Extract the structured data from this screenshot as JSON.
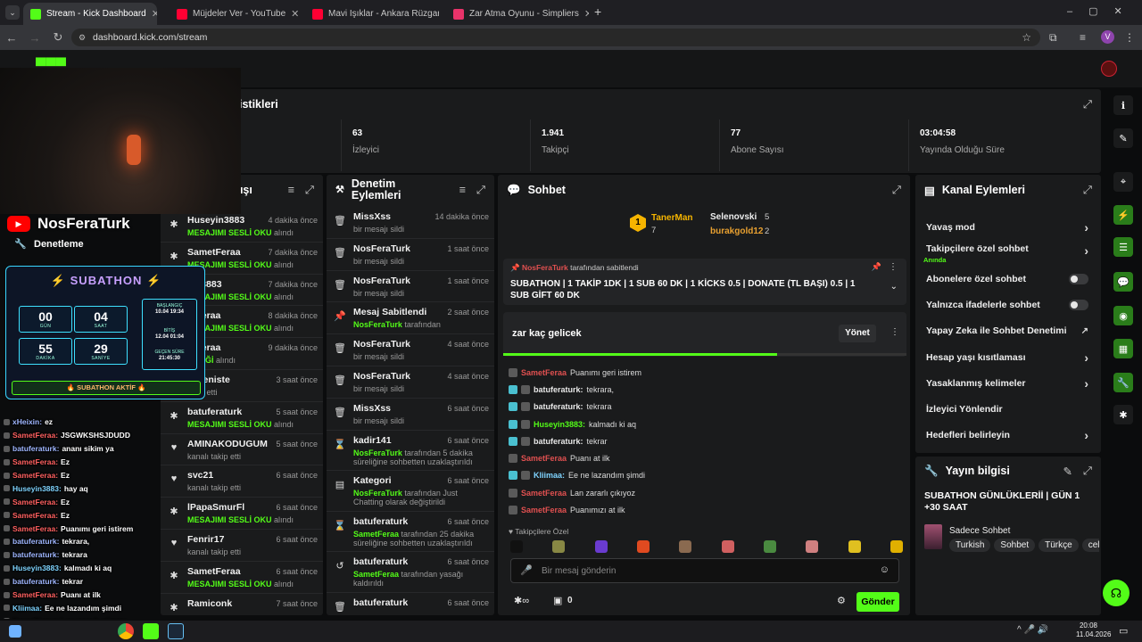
{
  "browser": {
    "tabs": [
      {
        "title": "Stream - Kick Dashboard",
        "color": "#53fc18",
        "active": true
      },
      {
        "title": "Müjdeler Ver - YouTube",
        "color": "#ff0033",
        "active": false
      },
      {
        "title": "Mavi Işıklar - Ankara Rüzgarı (1",
        "color": "#ff0033",
        "active": false
      },
      {
        "title": "Zar Atma Oyunu - Simpliers",
        "color": "#e8336a",
        "active": false
      }
    ],
    "new_tab": "+",
    "url": "dashboard.kick.com/stream",
    "profile": "V"
  },
  "stats": {
    "title_fragment": "istikleri",
    "items": [
      {
        "value": "63",
        "label": "İzleyici"
      },
      {
        "value": "1.941",
        "label": "Takipçi"
      },
      {
        "value": "77",
        "label": "Abone Sayısı"
      },
      {
        "value": "03:04:58",
        "label": "Yayında Olduğu Süre"
      }
    ]
  },
  "activity": {
    "title_fragment": "kışı",
    "rows": [
      {
        "name": "Huseyin3883",
        "time": "4 dakika önce",
        "detail_green": "MESAJIMI SESLİ OKU",
        "detail": "alındı"
      },
      {
        "name": "SametFeraa",
        "time": "7 dakika önce",
        "detail_green": "MESAJIMI SESLİ OKU",
        "detail": "alındı"
      },
      {
        "name": "yin3883",
        "time": "7 dakika önce",
        "detail_green": "MESAJIMI SESLİ OKU",
        "detail": "alındı"
      },
      {
        "name": "etFeraa",
        "time": "8 dakika önce",
        "detail_green": "MESAJIMI SESLİ OKU",
        "detail": "alındı"
      },
      {
        "name": "etFeraa",
        "time": "9 dakika önce",
        "detail_green": "İSTEĞİ",
        "detail": "alındı"
      },
      {
        "name": "cli_eniste",
        "time": "3 saat önce",
        "detail_green": "",
        "detail": "takip etti"
      },
      {
        "name": "batuferaturk",
        "time": "5 saat önce",
        "detail_green": "MESAJIMI SESLİ OKU",
        "detail": "alındı"
      },
      {
        "name": "AMINAKODUGUM",
        "time": "5 saat önce",
        "detail_green": "",
        "detail": "kanalı takip etti"
      },
      {
        "name": "svc21",
        "time": "6 saat önce",
        "detail_green": "",
        "detail": "kanalı takip etti"
      },
      {
        "name": "lPapaSmurFl",
        "time": "6 saat önce",
        "detail_green": "MESAJIMI SESLİ OKU",
        "detail": "alındı"
      },
      {
        "name": "Fenrir17",
        "time": "6 saat önce",
        "detail_green": "",
        "detail": "kanalı takip etti"
      },
      {
        "name": "SametFeraa",
        "time": "6 saat önce",
        "detail_green": "MESAJIMI SESLİ OKU",
        "detail": "alındı"
      },
      {
        "name": "Ramiconk",
        "time": "7 saat önce",
        "detail_green": "",
        "detail": ""
      }
    ]
  },
  "moderation": {
    "title_line1": "Denetim",
    "title_line2": "Eylemleri",
    "rows": [
      {
        "name": "MissXss",
        "time": "14 dakika önce",
        "detail": "bir mesajı sildi",
        "icon": "trash-icon",
        "glyph": "🗑"
      },
      {
        "name": "NosFeraTurk",
        "time": "1 saat önce",
        "detail": "bir mesajı sildi",
        "icon": "trash-icon",
        "glyph": "🗑"
      },
      {
        "name": "NosFeraTurk",
        "time": "1 saat önce",
        "detail": "bir mesajı sildi",
        "icon": "trash-icon",
        "glyph": "🗑"
      },
      {
        "name": "Mesaj Sabitlendi",
        "time": "2 saat önce",
        "detail_green": "NosFeraTurk",
        "detail": "tarafından",
        "icon": "pin-icon",
        "glyph": "📌"
      },
      {
        "name": "NosFeraTurk",
        "time": "4 saat önce",
        "detail": "bir mesajı sildi",
        "icon": "trash-icon",
        "glyph": "🗑"
      },
      {
        "name": "NosFeraTurk",
        "time": "4 saat önce",
        "detail": "bir mesajı sildi",
        "icon": "trash-icon",
        "glyph": "🗑"
      },
      {
        "name": "MissXss",
        "time": "6 saat önce",
        "detail": "bir mesajı sildi",
        "icon": "trash-icon",
        "glyph": "🗑"
      },
      {
        "name": "kadir141",
        "time": "6 saat önce",
        "detail_green": "NosFeraTurk",
        "detail": "tarafından 5 dakika süreliğine sohbetten uzaklaştırıldı",
        "icon": "hourglass-icon",
        "glyph": "⌛",
        "tall": true
      },
      {
        "name": "Kategori",
        "time": "6 saat önce",
        "detail_green": "NosFeraTurk",
        "detail": "tarafından Just Chatting olarak değiştirildi",
        "icon": "category-icon",
        "glyph": "▤",
        "tall": true
      },
      {
        "name": "batuferaturk",
        "time": "6 saat önce",
        "detail_green": "SametFeraa",
        "detail": "tarafından 25 dakika süreliğine sohbetten uzaklaştırıldı",
        "icon": "hourglass-icon",
        "glyph": "⌛",
        "tall": true
      },
      {
        "name": "batuferaturk",
        "time": "6 saat önce",
        "detail_green": "SametFeraa",
        "detail": "tarafından yasağı kaldırıldı",
        "icon": "undo-icon",
        "glyph": "↺",
        "tall": true
      },
      {
        "name": "batuferaturk",
        "time": "6 saat önce",
        "detail": "",
        "icon": "trash-icon",
        "glyph": "🗑"
      }
    ]
  },
  "chat": {
    "title": "Sohbet",
    "leaderboard": [
      {
        "name": "TanerMan",
        "count": "7"
      },
      {
        "name": "Selenovski",
        "count": "5"
      },
      {
        "name": "burakgold12",
        "count": "2"
      }
    ],
    "pinned_by": "NosFeraTurk",
    "pinned_by_suffix": "tarafından sabitlendi",
    "pinned_text": "SUBATHON | 1 TAKİP 1DK | 1 SUB 60 DK | 1 KİCKS 0.5 | DONATE (TL BAŞI) 0.5 | 1 SUB GİFT 60 DK",
    "poll_text": "zar kaç gelicek",
    "poll_button": "Yönet",
    "poll_progress": 0.68,
    "messages": [
      {
        "user": "SametFeraa",
        "text": "Puanımı geri istirem",
        "color": "red"
      },
      {
        "user": "batuferaturk:",
        "text": "tekrara,",
        "color": "blue"
      },
      {
        "user": "batuferaturk:",
        "text": "tekrara",
        "color": "blue"
      },
      {
        "user": "Huseyin3883:",
        "text": "kalmadı ki aq",
        "color": "green"
      },
      {
        "user": "batuferaturk:",
        "text": "tekrar",
        "color": "blue"
      },
      {
        "user": "SametFeraa",
        "text": "Puanı at ilk",
        "color": "red"
      },
      {
        "user": "Kliimaa:",
        "text": "Ee ne lazandım şimdi",
        "color": "cyan"
      },
      {
        "user": "SametFeraa",
        "text": "Lan zararlı çıkıyoz",
        "color": "red"
      },
      {
        "user": "SametFeraa",
        "text": "Puanımızı at ilk",
        "color": "red"
      }
    ],
    "followers_label": "Takipçilere Özel",
    "input_placeholder": "Bir mesaj gönderin",
    "points": "0",
    "send_button": "Gönder"
  },
  "channel_actions": {
    "title": "Kanal Eylemleri",
    "items": [
      {
        "label": "Yavaş mod",
        "control": "chevron"
      },
      {
        "label": "Takipçilere özel sohbet",
        "sub": "Anında",
        "control": "chevron"
      },
      {
        "label": "Abonelere özel sohbet",
        "control": "toggle"
      },
      {
        "label": "Yalnızca ifadelerle sohbet",
        "control": "toggle"
      },
      {
        "label": "Yapay Zeka ile Sohbet Denetimi",
        "control": "external"
      },
      {
        "label": "Hesap yaşı kısıtlaması",
        "control": "chevron"
      },
      {
        "label": "Yasaklanmış kelimeler",
        "control": "chevron"
      },
      {
        "label": "İzleyici Yönlendir",
        "control": "none"
      },
      {
        "label": "Hedefleri belirleyin",
        "control": "chevron"
      }
    ]
  },
  "stream_info": {
    "title": "Yayın bilgisi",
    "stream_title": "SUBATHON GÜNLÜKLERİİ | GÜN 1 +30 SAAT",
    "category": "Sadece Sohbet",
    "tags": [
      "Turkish",
      "Sohbet",
      "Türkçe",
      "cel"
    ]
  },
  "overlay": {
    "channel_name": "NosFeraTurk",
    "mod_label": "Denetleme",
    "subathon_title": "SUBATHON",
    "timer": [
      {
        "value": "00",
        "label": "GÜN"
      },
      {
        "value": "04",
        "label": "SAAT"
      },
      {
        "value": "55",
        "label": "DAKİKA"
      },
      {
        "value": "29",
        "label": "SANİYE"
      }
    ],
    "start_label": "BAŞLANGIÇ",
    "start_value": "10.04 19:34",
    "end_label": "BİTİŞ",
    "end_value": "12.04 01:04",
    "elapsed_label": "GEÇEN SÜRE",
    "elapsed_value": "21:45:30",
    "active_label": "🔥 SUBATHON AKTİF 🔥",
    "chat": [
      {
        "user": "xHeixin:",
        "text": "ez",
        "color": "#9fb6ff"
      },
      {
        "user": "SametFeraa:",
        "text": "JSGWKSHSJDUDD",
        "color": "#ff6060"
      },
      {
        "user": "batuferaturk:",
        "text": "ananı sikim ya",
        "color": "#9fb6ff"
      },
      {
        "user": "SametFeraa:",
        "text": "Ez",
        "color": "#ff6060"
      },
      {
        "user": "SametFeraa:",
        "text": "Ez",
        "color": "#ff6060"
      },
      {
        "user": "Huseyin3883:",
        "text": "hay aq",
        "color": "#7fd4ff"
      },
      {
        "user": "SametFeraa:",
        "text": "Ez",
        "color": "#ff6060"
      },
      {
        "user": "SametFeraa:",
        "text": "Ez",
        "color": "#ff6060"
      },
      {
        "user": "SametFeraa:",
        "text": "Puanımı geri istirem",
        "color": "#ff6060"
      },
      {
        "user": "batuferaturk:",
        "text": "tekrara,",
        "color": "#9fb6ff"
      },
      {
        "user": "batuferaturk:",
        "text": "tekrara",
        "color": "#9fb6ff"
      },
      {
        "user": "Huseyin3883:",
        "text": "kalmadı ki aq",
        "color": "#7fd4ff"
      },
      {
        "user": "batuferaturk:",
        "text": "tekrar",
        "color": "#9fb6ff"
      },
      {
        "user": "SametFeraa:",
        "text": "Puanı at ilk",
        "color": "#ff6060"
      },
      {
        "user": "Kliimaa:",
        "text": "Ee ne lazandım şimdi",
        "color": "#7fd4ff"
      },
      {
        "user": "SametFeraa:",
        "text": "Lan zararlı çıkıyoz",
        "color": "#ff6060"
      },
      {
        "user": "SametFeraa:",
        "text": "Puanımızı at ilk",
        "color": "#ff6060"
      }
    ]
  },
  "taskbar": {
    "time": "20:08",
    "date": "11.04.2026"
  }
}
